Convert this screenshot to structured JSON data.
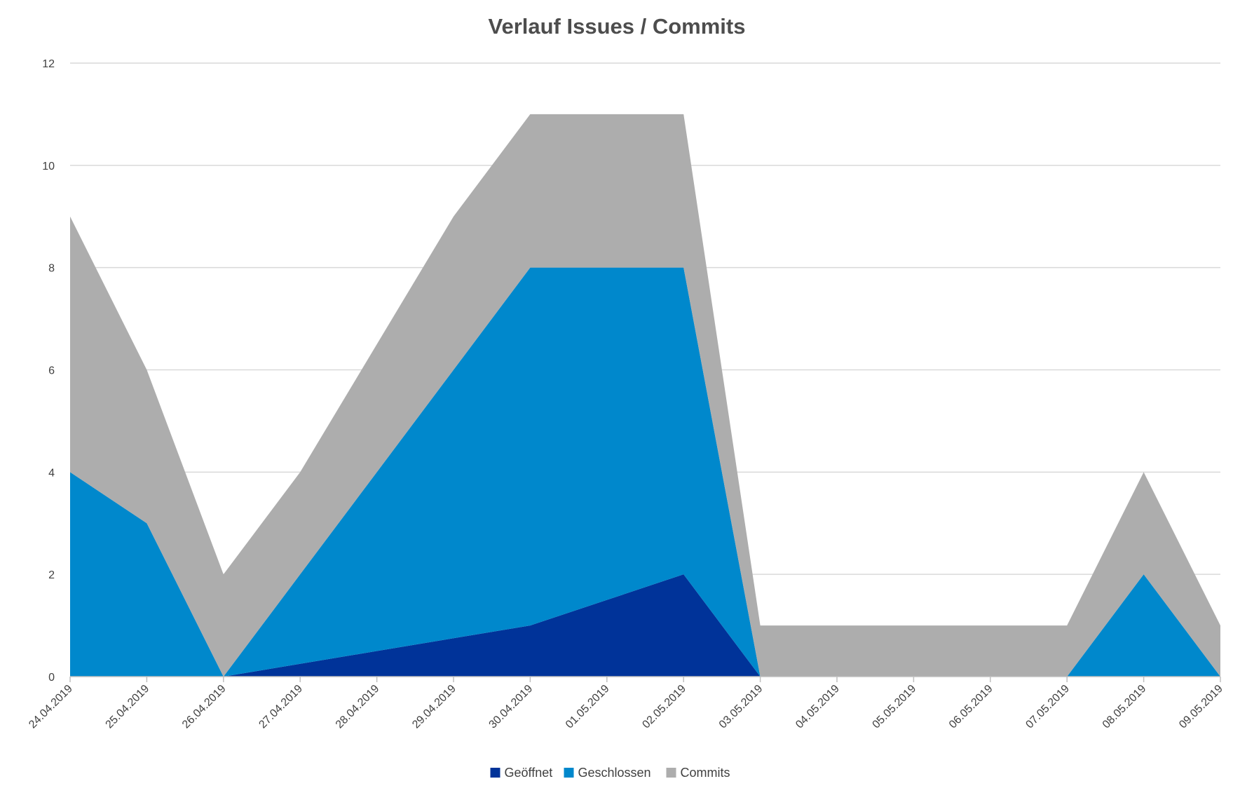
{
  "chart_data": {
    "type": "area",
    "stacked": true,
    "title": "Verlauf Issues / Commits",
    "xlabel": "",
    "ylabel": "",
    "ylim": [
      0,
      12
    ],
    "yticks": [
      "0",
      "2",
      "4",
      "6",
      "8",
      "10",
      "12"
    ],
    "grid": true,
    "legend_position": "bottom",
    "categories": [
      "24.04.2019",
      "25.04.2019",
      "26.04.2019",
      "27.04.2019",
      "28.04.2019",
      "29.04.2019",
      "30.04.2019",
      "01.05.2019",
      "02.05.2019",
      "03.05.2019",
      "04.05.2019",
      "05.05.2019",
      "06.05.2019",
      "07.05.2019",
      "08.05.2019",
      "09.05.2019"
    ],
    "series": [
      {
        "name": "Geöffnet",
        "color": "#003399",
        "values": [
          0,
          0,
          0,
          0.25,
          0.5,
          0.75,
          1,
          1.5,
          2,
          0,
          0,
          0,
          0,
          0,
          0,
          0
        ]
      },
      {
        "name": "Geschlossen",
        "color": "#0088cc",
        "values": [
          4,
          3,
          0,
          1.75,
          3.5,
          5.25,
          7,
          6.5,
          6,
          0,
          0,
          0,
          0,
          0,
          2,
          0
        ]
      },
      {
        "name": "Commits",
        "color": "#adadad",
        "values": [
          5,
          3,
          2,
          2,
          2.5,
          3,
          3,
          3,
          3,
          1,
          1,
          1,
          1,
          1,
          2,
          1
        ]
      }
    ]
  }
}
